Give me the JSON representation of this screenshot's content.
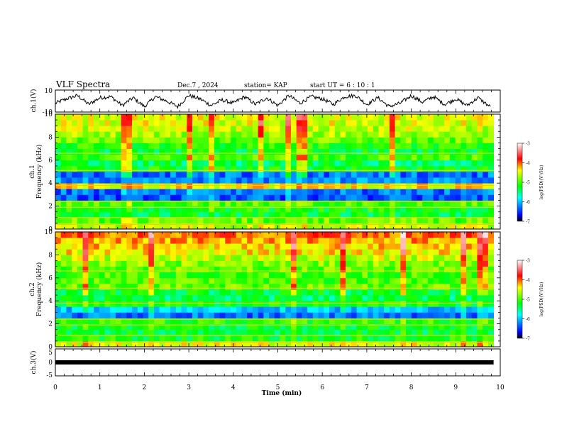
{
  "header": {
    "title": "VLF Spectra",
    "date": "Dec.7 , 2024",
    "station": "station= KAP",
    "start": "start UT = 6 : 10 : 1"
  },
  "chart_data": [
    {
      "type": "line",
      "panel": "ch1-waveform",
      "ylabel": "ch.1(V)",
      "ylim": [
        -10,
        10
      ],
      "yticks": [
        "10",
        "-10"
      ],
      "xlim": [
        0,
        10
      ],
      "series": [
        {
          "x": [
            0,
            0.25,
            0.5,
            0.75,
            1,
            1.25,
            1.5,
            1.75,
            2,
            2.25,
            2.5,
            2.75,
            3,
            3.25,
            3.5,
            3.75,
            4,
            4.25,
            4.5,
            4.75,
            5,
            5.25,
            5.5,
            5.75,
            6,
            6.25,
            6.5,
            6.75,
            7,
            7.25,
            7.5,
            7.75,
            8,
            8.25,
            8.5,
            8.75,
            9,
            9.25,
            9.5,
            9.8
          ],
          "y": [
            -2,
            2,
            5,
            -3,
            3,
            4,
            -4,
            3,
            -5,
            4,
            0,
            -5,
            5,
            2,
            -4,
            1,
            -2,
            4,
            -3,
            3,
            -4,
            5,
            -2,
            4,
            2,
            -3,
            4,
            5,
            -3,
            3,
            -5,
            -2,
            5,
            -1,
            4,
            -3,
            2,
            -4,
            3,
            -6
          ],
          "color": "#000000"
        }
      ]
    },
    {
      "type": "heatmap",
      "panel": "ch1-spectrogram",
      "ylabel": "ch.1",
      "ylabel2": "Frequency (kHz)",
      "ylim": [
        0,
        10
      ],
      "yticks": [
        "0",
        "2",
        "4",
        "6",
        "8",
        "10"
      ],
      "xlim": [
        0,
        9.85
      ],
      "frequency_bands_khz": [
        0.25,
        0.75,
        1.25,
        1.75,
        2.25,
        2.75,
        3.25,
        3.75,
        4.25,
        4.75,
        5.25,
        5.75,
        6.25,
        6.75,
        7.25,
        7.75,
        8.25,
        8.75,
        9.25,
        9.75
      ],
      "log_psd_levels": [
        -4.6,
        -4.9,
        -5.3,
        -5.2,
        -5.0,
        -6.4,
        -6.3,
        -4.4,
        -6.2,
        -6.3,
        -5.2,
        -5.4,
        -5.0,
        -5.3,
        -5.1,
        -4.9,
        -4.7,
        -4.6,
        -4.5,
        -4.5
      ],
      "colorbar": {
        "label": "log(PSD)(V²/Hz)",
        "range": [
          -7,
          -3
        ],
        "ticks": [
          "-3",
          "-4",
          "-5",
          "-6",
          "-7"
        ]
      }
    },
    {
      "type": "heatmap",
      "panel": "ch2-spectrogram",
      "ylabel": "ch.2",
      "ylabel2": "Frequency (kHz)",
      "ylim": [
        0,
        10
      ],
      "yticks": [
        "0",
        "2",
        "4",
        "6",
        "8",
        "10"
      ],
      "xlim": [
        0,
        9.85
      ],
      "frequency_bands_khz": [
        0.25,
        0.75,
        1.25,
        1.75,
        2.25,
        2.75,
        3.25,
        3.75,
        4.25,
        4.75,
        5.25,
        5.75,
        6.25,
        6.75,
        7.25,
        7.75,
        8.25,
        8.75,
        9.25,
        9.75
      ],
      "log_psd_levels": [
        -4.5,
        -5.2,
        -5.3,
        -5.3,
        -5.1,
        -6.3,
        -6.0,
        -5.2,
        -5.4,
        -5.3,
        -4.9,
        -5.0,
        -5.0,
        -4.9,
        -4.8,
        -4.6,
        -4.4,
        -4.3,
        -4.2,
        -4.0
      ],
      "colorbar": {
        "label": "log(PSD)(V²/Hz)",
        "range": [
          -7,
          -3
        ],
        "ticks": [
          "-3",
          "-4",
          "-5",
          "-6",
          "-7"
        ]
      }
    },
    {
      "type": "line",
      "panel": "ch3-waveform",
      "ylabel": "ch.3(V)",
      "ylim": [
        -5,
        5
      ],
      "yticks": [
        "5",
        "0",
        "-5"
      ],
      "xlim": [
        0,
        10
      ],
      "series": [
        {
          "x": [
            0,
            9.85
          ],
          "y": [
            0,
            0
          ],
          "color": "#000000"
        }
      ]
    }
  ],
  "xaxis": {
    "label": "Time (min)",
    "ticks": [
      "0",
      "1",
      "2",
      "3",
      "4",
      "5",
      "6",
      "7",
      "8",
      "9",
      "10"
    ]
  }
}
